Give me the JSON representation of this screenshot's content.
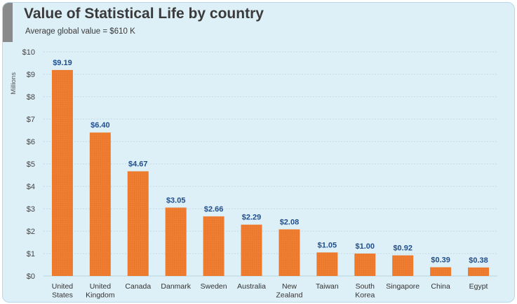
{
  "header": {
    "title": "Value of Statistical Life by country",
    "subtitle": "Average global value = $610 K"
  },
  "colors": {
    "bar": "#ee7d31",
    "value_label": "#1f4e8c",
    "card_bg": "#ddeff7",
    "grid": "#bcd4de"
  },
  "chart_data": {
    "type": "bar",
    "title": "Value of Statistical Life by country",
    "subtitle": "Average global value = $610 K",
    "xlabel": "",
    "ylabel": "Millions",
    "ylim": [
      0,
      10
    ],
    "grid": true,
    "yticks": [
      0,
      1,
      2,
      3,
      4,
      5,
      6,
      7,
      8,
      9,
      10
    ],
    "ytick_labels": [
      "$0",
      "$1",
      "$2",
      "$3",
      "$4",
      "$5",
      "$6",
      "$7",
      "$8",
      "$9",
      "$10"
    ],
    "categories": [
      [
        "United",
        "States"
      ],
      [
        "United",
        "Kingdom"
      ],
      [
        "Canada"
      ],
      [
        "Danmark"
      ],
      [
        "Sweden"
      ],
      [
        "Australia"
      ],
      [
        "New",
        "Zealand"
      ],
      [
        "Taiwan"
      ],
      [
        "South",
        "Korea"
      ],
      [
        "Singapore"
      ],
      [
        "China"
      ],
      [
        "Egypt"
      ]
    ],
    "values": [
      9.19,
      6.4,
      4.67,
      3.05,
      2.66,
      2.29,
      2.08,
      1.05,
      1.0,
      0.92,
      0.39,
      0.38
    ],
    "data_labels": [
      "$9.19",
      "$6.40",
      "$4.67",
      "$3.05",
      "$2.66",
      "$2.29",
      "$2.08",
      "$1.05",
      "$1.00",
      "$0.92",
      "$0.39",
      "$0.38"
    ]
  }
}
